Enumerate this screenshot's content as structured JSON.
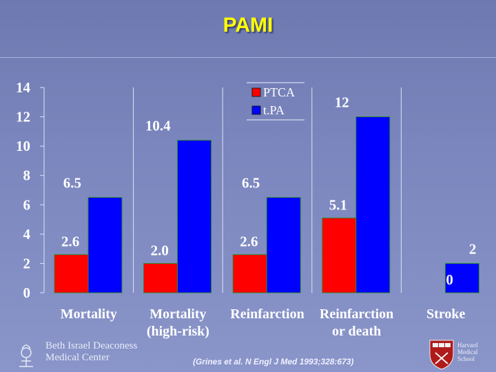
{
  "slide": {
    "title": "PAMI",
    "citation": "(Grines et al. N Engl J Med 1993;328:673)"
  },
  "logos": {
    "bidmc": [
      "Beth Israel Deaconess",
      "Medical Center"
    ],
    "harvard": [
      "Harvard",
      "Medical",
      "School"
    ]
  },
  "chart_data": {
    "type": "bar",
    "categories": [
      [
        "Mortality"
      ],
      [
        "Mortality",
        "(high-risk)"
      ],
      [
        "Reinfarction"
      ],
      [
        "Reinfarction",
        "or death"
      ],
      [
        "Stroke"
      ]
    ],
    "series": [
      {
        "name": "PTCA",
        "color": "#ff0000",
        "values": [
          2.6,
          2.0,
          2.6,
          5.1,
          0
        ],
        "labels": [
          "2.6",
          "2.0",
          "2.6",
          "5.1",
          "0"
        ]
      },
      {
        "name": "t.PA",
        "color": "#0000ff",
        "values": [
          6.5,
          10.4,
          6.5,
          12,
          2
        ],
        "labels": [
          "6.5",
          "10.4",
          "6.5",
          "12",
          "2"
        ]
      }
    ],
    "yticks": [
      0,
      2,
      4,
      6,
      8,
      10,
      12,
      14
    ],
    "ylim": [
      0,
      14
    ],
    "legend_position": "top-center",
    "grid": false
  }
}
